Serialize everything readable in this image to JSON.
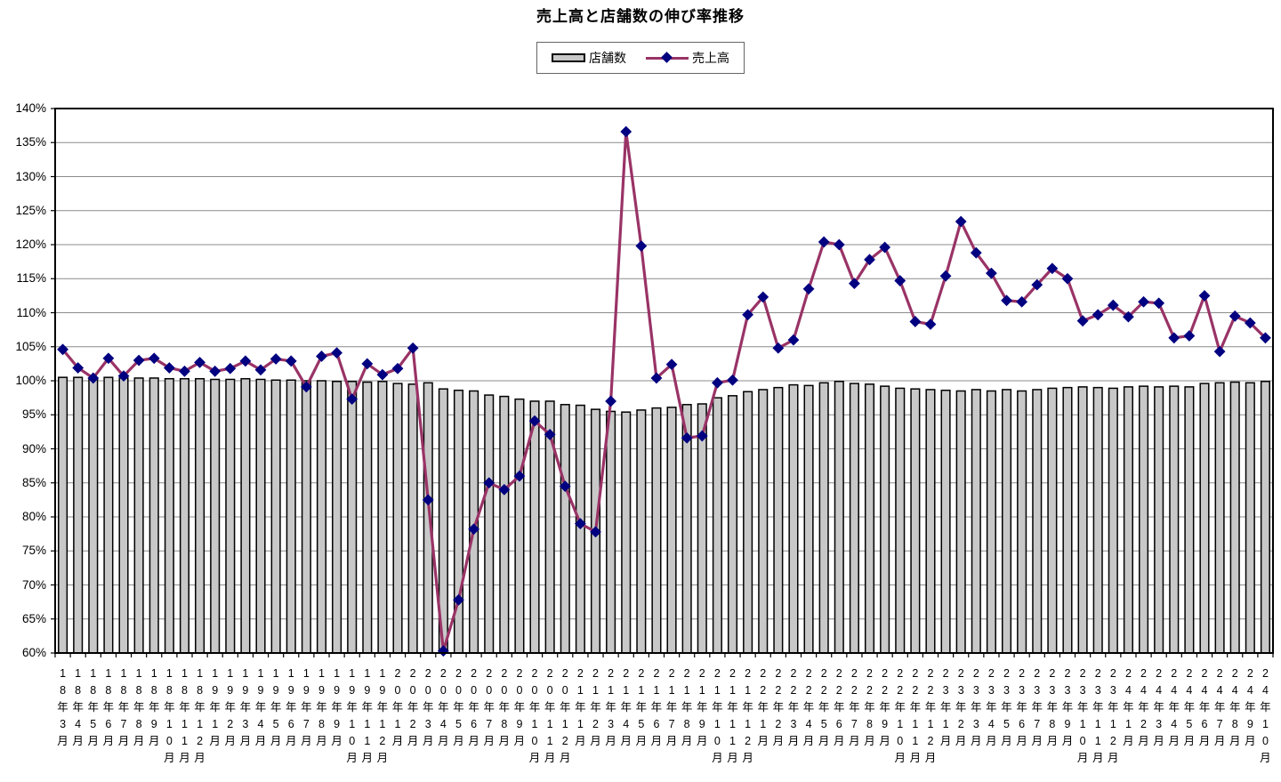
{
  "title": "売上高と店舗数の伸び率推移",
  "legend": {
    "stores_label": "店舗数",
    "sales_label": "売上高"
  },
  "colors": {
    "bar_fill": "#c8c8c8",
    "bar_border": "#000000",
    "line": "#993366",
    "marker": "#000080",
    "grid": "#8c8c8c",
    "axis": "#000000",
    "background": "#ffffff"
  },
  "chart_data": {
    "type": "combo",
    "title": "売上高と店舗数の伸び率推移",
    "xlabel": "",
    "ylabel": "",
    "ylim": [
      60,
      140
    ],
    "ytick_step": 5,
    "ytick_suffix": "%",
    "grid": true,
    "legend_position": "top",
    "categories": [
      "18年3月",
      "18年4月",
      "18年5月",
      "18年6月",
      "18年7月",
      "18年8月",
      "18年9月",
      "18年10月",
      "18年11月",
      "18年12月",
      "19年1月",
      "19年2月",
      "19年3月",
      "19年4月",
      "19年5月",
      "19年6月",
      "19年7月",
      "19年8月",
      "19年9月",
      "19年10月",
      "19年11月",
      "19年12月",
      "20年1月",
      "20年2月",
      "20年3月",
      "20年4月",
      "20年5月",
      "20年6月",
      "20年7月",
      "20年8月",
      "20年9月",
      "20年10月",
      "20年11月",
      "20年12月",
      "21年1月",
      "21年2月",
      "21年3月",
      "21年4月",
      "21年5月",
      "21年6月",
      "21年7月",
      "21年8月",
      "21年9月",
      "21年10月",
      "21年11月",
      "21年12月",
      "22年1月",
      "22年2月",
      "22年3月",
      "22年4月",
      "22年5月",
      "22年6月",
      "22年7月",
      "22年8月",
      "22年9月",
      "22年10月",
      "22年11月",
      "22年12月",
      "23年1月",
      "23年2月",
      "23年3月",
      "23年4月",
      "23年5月",
      "23年6月",
      "23年7月",
      "23年8月",
      "23年9月",
      "23年10月",
      "23年11月",
      "23年12月",
      "24年1月",
      "24年2月",
      "24年3月",
      "24年4月",
      "24年5月",
      "24年6月",
      "24年7月",
      "24年8月",
      "24年9月",
      "24年10月"
    ],
    "series": [
      {
        "name": "店舗数",
        "type": "bar",
        "values": [
          100.5,
          100.5,
          100.4,
          100.5,
          100.4,
          100.4,
          100.4,
          100.3,
          100.3,
          100.3,
          100.2,
          100.2,
          100.3,
          100.2,
          100.1,
          100.1,
          100.0,
          100.0,
          99.9,
          99.9,
          99.8,
          99.9,
          99.6,
          99.5,
          99.7,
          98.8,
          98.6,
          98.5,
          97.9,
          97.7,
          97.3,
          97.0,
          97.0,
          96.5,
          96.4,
          95.8,
          95.5,
          95.4,
          95.7,
          96.0,
          96.1,
          96.5,
          96.6,
          97.5,
          97.8,
          98.4,
          98.7,
          99.0,
          99.4,
          99.3,
          99.7,
          99.9,
          99.6,
          99.5,
          99.2,
          98.9,
          98.8,
          98.7,
          98.6,
          98.5,
          98.7,
          98.5,
          98.7,
          98.5,
          98.7,
          98.9,
          99.0,
          99.1,
          99.0,
          98.9,
          99.1,
          99.2,
          99.1,
          99.2,
          99.1,
          99.6,
          99.7,
          99.8,
          99.7,
          99.9
        ]
      },
      {
        "name": "売上高",
        "type": "line",
        "values": [
          104.6,
          101.9,
          100.4,
          103.3,
          100.7,
          103.0,
          103.3,
          101.9,
          101.4,
          102.7,
          101.4,
          101.8,
          102.9,
          101.6,
          103.2,
          102.9,
          99.1,
          103.6,
          104.1,
          97.3,
          102.5,
          100.9,
          101.8,
          104.8,
          82.5,
          60.3,
          67.8,
          78.2,
          85.0,
          84.0,
          86.0,
          94.1,
          92.1,
          84.5,
          79.0,
          77.8,
          97.0,
          136.6,
          119.8,
          100.4,
          102.4,
          91.6,
          91.9,
          99.7,
          100.1,
          109.7,
          112.3,
          104.8,
          106.0,
          113.5,
          120.4,
          120.0,
          114.3,
          117.8,
          119.6,
          114.7,
          108.7,
          108.3,
          115.4,
          123.4,
          118.8,
          115.8,
          111.8,
          111.6,
          114.1,
          116.5,
          115.0,
          108.8,
          109.7,
          111.1,
          109.4,
          111.6,
          111.4,
          106.3,
          106.6,
          112.5,
          104.3,
          109.5,
          108.5,
          106.3
        ]
      }
    ]
  }
}
